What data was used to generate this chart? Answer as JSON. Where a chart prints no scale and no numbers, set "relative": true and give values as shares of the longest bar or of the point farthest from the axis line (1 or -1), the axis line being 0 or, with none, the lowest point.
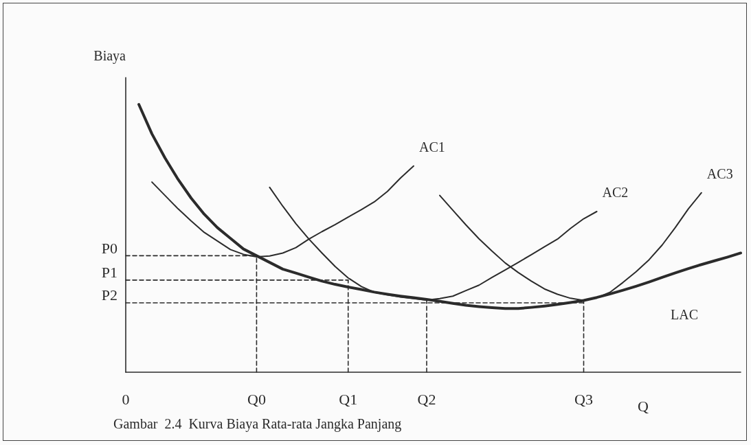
{
  "chart_data": {
    "type": "line",
    "relative": true,
    "title": "Gambar  2.4  Kurva Biaya Rata-rata Jangka Panjang",
    "xlabel": "Q",
    "ylabel": "Biaya",
    "marker": "none",
    "line_style": "solid",
    "categories": [
      "0",
      null,
      null,
      null,
      null,
      null,
      null,
      null,
      null,
      null,
      "Q0",
      null,
      null,
      null,
      null,
      null,
      null,
      "Q1",
      null,
      null,
      null,
      null,
      null,
      "Q2",
      null,
      null,
      null,
      null,
      null,
      null,
      null,
      null,
      null,
      null,
      null,
      "Q3",
      null,
      null,
      null,
      null,
      null,
      null,
      null,
      null,
      null,
      null,
      null,
      null
    ],
    "annotations": [
      {
        "text": "P0",
        "x": "0",
        "y": 0.435
      },
      {
        "text": "P1",
        "x": "0",
        "y": 0.344
      },
      {
        "text": "P2",
        "x": "0",
        "y": 0.259
      }
    ],
    "series": [
      {
        "name": "LAC",
        "color": "#2b2b2b",
        "values": [
          null,
          1.0,
          0.89,
          0.8,
          0.72,
          0.65,
          0.59,
          0.54,
          0.5,
          0.46,
          0.435,
          0.41,
          0.385,
          0.37,
          0.355,
          0.34,
          0.328,
          0.318,
          0.309,
          0.299,
          0.291,
          0.284,
          0.278,
          0.272,
          0.265,
          0.257,
          0.25,
          0.245,
          0.241,
          0.238,
          0.238,
          0.242,
          0.247,
          0.253,
          0.26,
          0.268,
          0.279,
          0.292,
          0.306,
          0.321,
          0.337,
          0.354,
          0.371,
          0.387,
          0.402,
          0.416,
          0.43,
          0.445
        ]
      },
      {
        "name": "AC1",
        "color": "#2b2b2b",
        "values": [
          null,
          null,
          0.71,
          0.66,
          0.61,
          0.565,
          0.522,
          0.49,
          0.458,
          0.44,
          0.431,
          0.434,
          0.445,
          0.465,
          0.497,
          0.525,
          0.551,
          0.579,
          0.607,
          0.636,
          0.675,
          0.725,
          0.77,
          null,
          null,
          null,
          null,
          null,
          null,
          null,
          null,
          null,
          null,
          null,
          null,
          null,
          null,
          null,
          null,
          null,
          null,
          null,
          null,
          null,
          null,
          null,
          null,
          null
        ]
      },
      {
        "name": "AC2",
        "color": "#2b2b2b",
        "values": [
          null,
          null,
          null,
          null,
          null,
          null,
          null,
          null,
          null,
          null,
          null,
          0.69,
          0.62,
          0.555,
          0.497,
          0.445,
          0.395,
          0.352,
          0.32,
          0.298,
          0.289,
          0.281,
          0.275,
          0.269,
          0.275,
          0.284,
          0.305,
          0.325,
          0.354,
          0.382,
          0.41,
          0.439,
          0.468,
          0.497,
          0.537,
          0.573,
          0.6,
          null,
          null,
          null,
          null,
          null,
          null,
          null,
          null,
          null,
          null,
          null
        ]
      },
      {
        "name": "AC3",
        "color": "#2b2b2b",
        "values": [
          null,
          null,
          null,
          null,
          null,
          null,
          null,
          null,
          null,
          null,
          null,
          null,
          null,
          null,
          null,
          null,
          null,
          null,
          null,
          null,
          null,
          null,
          null,
          null,
          0.66,
          0.605,
          0.55,
          0.498,
          0.452,
          0.408,
          0.372,
          0.34,
          0.311,
          0.291,
          0.276,
          0.268,
          0.278,
          0.298,
          0.335,
          0.375,
          0.42,
          0.475,
          0.54,
          0.61,
          0.67,
          null,
          null,
          null
        ]
      },
      {
        "color": "#2b2b2b",
        "line_style": "dashed",
        "x": [
          "0",
          "Q0"
        ],
        "values": [
          0.435,
          0.435
        ]
      },
      {
        "color": "#2b2b2b",
        "line_style": "dashed",
        "x": [
          "0",
          "Q1"
        ],
        "values": [
          0.344,
          0.344
        ]
      },
      {
        "color": "#2b2b2b",
        "line_style": "dashed",
        "x": [
          "0",
          "Q3"
        ],
        "values": [
          0.259,
          0.259
        ]
      },
      {
        "color": "#2b2b2b",
        "line_style": "dashed",
        "x": [
          "Q0",
          "Q0"
        ],
        "values": [
          0,
          0.435
        ]
      },
      {
        "color": "#2b2b2b",
        "line_style": "dashed",
        "x": [
          "Q1",
          "Q1"
        ],
        "values": [
          0,
          0.344
        ]
      },
      {
        "color": "#2b2b2b",
        "line_style": "dashed",
        "x": [
          "Q2",
          "Q2"
        ],
        "values": [
          0,
          0.272
        ]
      },
      {
        "color": "#2b2b2b",
        "line_style": "dashed",
        "x": [
          "Q3",
          "Q3"
        ],
        "values": [
          0,
          0.268
        ]
      }
    ]
  }
}
